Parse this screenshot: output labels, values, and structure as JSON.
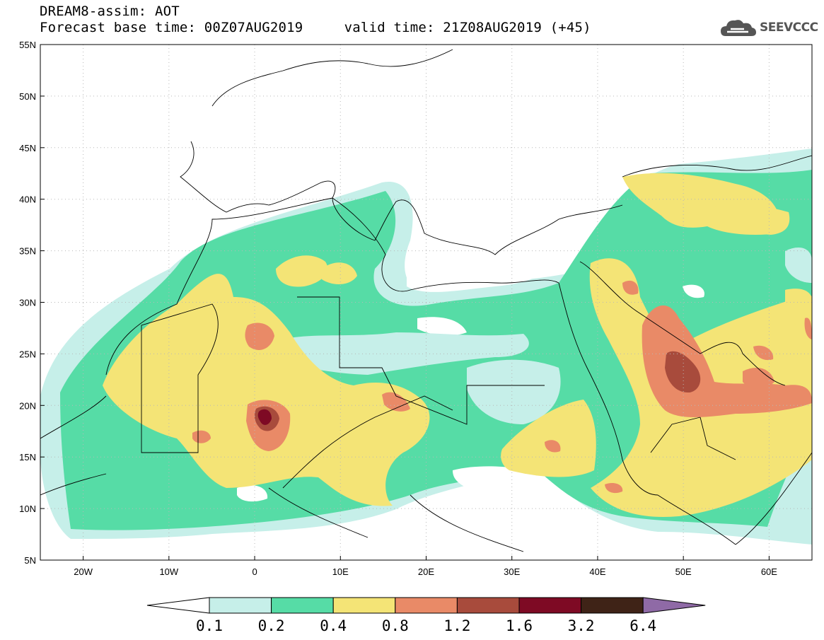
{
  "header": {
    "title_line1": "DREAM8-assim: AOT",
    "title_line2": "Forecast base time: 00Z07AUG2019     valid time: 21Z08AUG2019 (+45)"
  },
  "logo": {
    "text": "SEEVCCC",
    "icon": "cloud-icon"
  },
  "map": {
    "lon_ticks": [
      "20W",
      "10W",
      "0",
      "10E",
      "20E",
      "30E",
      "40E",
      "50E",
      "60E"
    ],
    "lat_ticks": [
      "5N",
      "10N",
      "15N",
      "20N",
      "25N",
      "30N",
      "35N",
      "40N",
      "45N",
      "50N",
      "55N"
    ],
    "lon_range": [
      -25,
      65
    ],
    "lat_range": [
      5,
      55
    ],
    "grid": "dotted"
  },
  "colorbar": {
    "levels": [
      "0.1",
      "0.2",
      "0.4",
      "0.8",
      "1.2",
      "1.6",
      "3.2",
      "6.4"
    ],
    "colors": [
      "#c6efe9",
      "#56dca6",
      "#f4e476",
      "#e98a67",
      "#a84b3c",
      "#7e0a24",
      "#3f2317",
      "#8f6aa6"
    ],
    "under_color": "#ffffff"
  },
  "colors": {
    "c01": "#c6efe9",
    "c02": "#56dca6",
    "c04": "#f4e476",
    "c08": "#e98a67",
    "c12": "#a84b3c",
    "c16": "#7e0a24"
  }
}
